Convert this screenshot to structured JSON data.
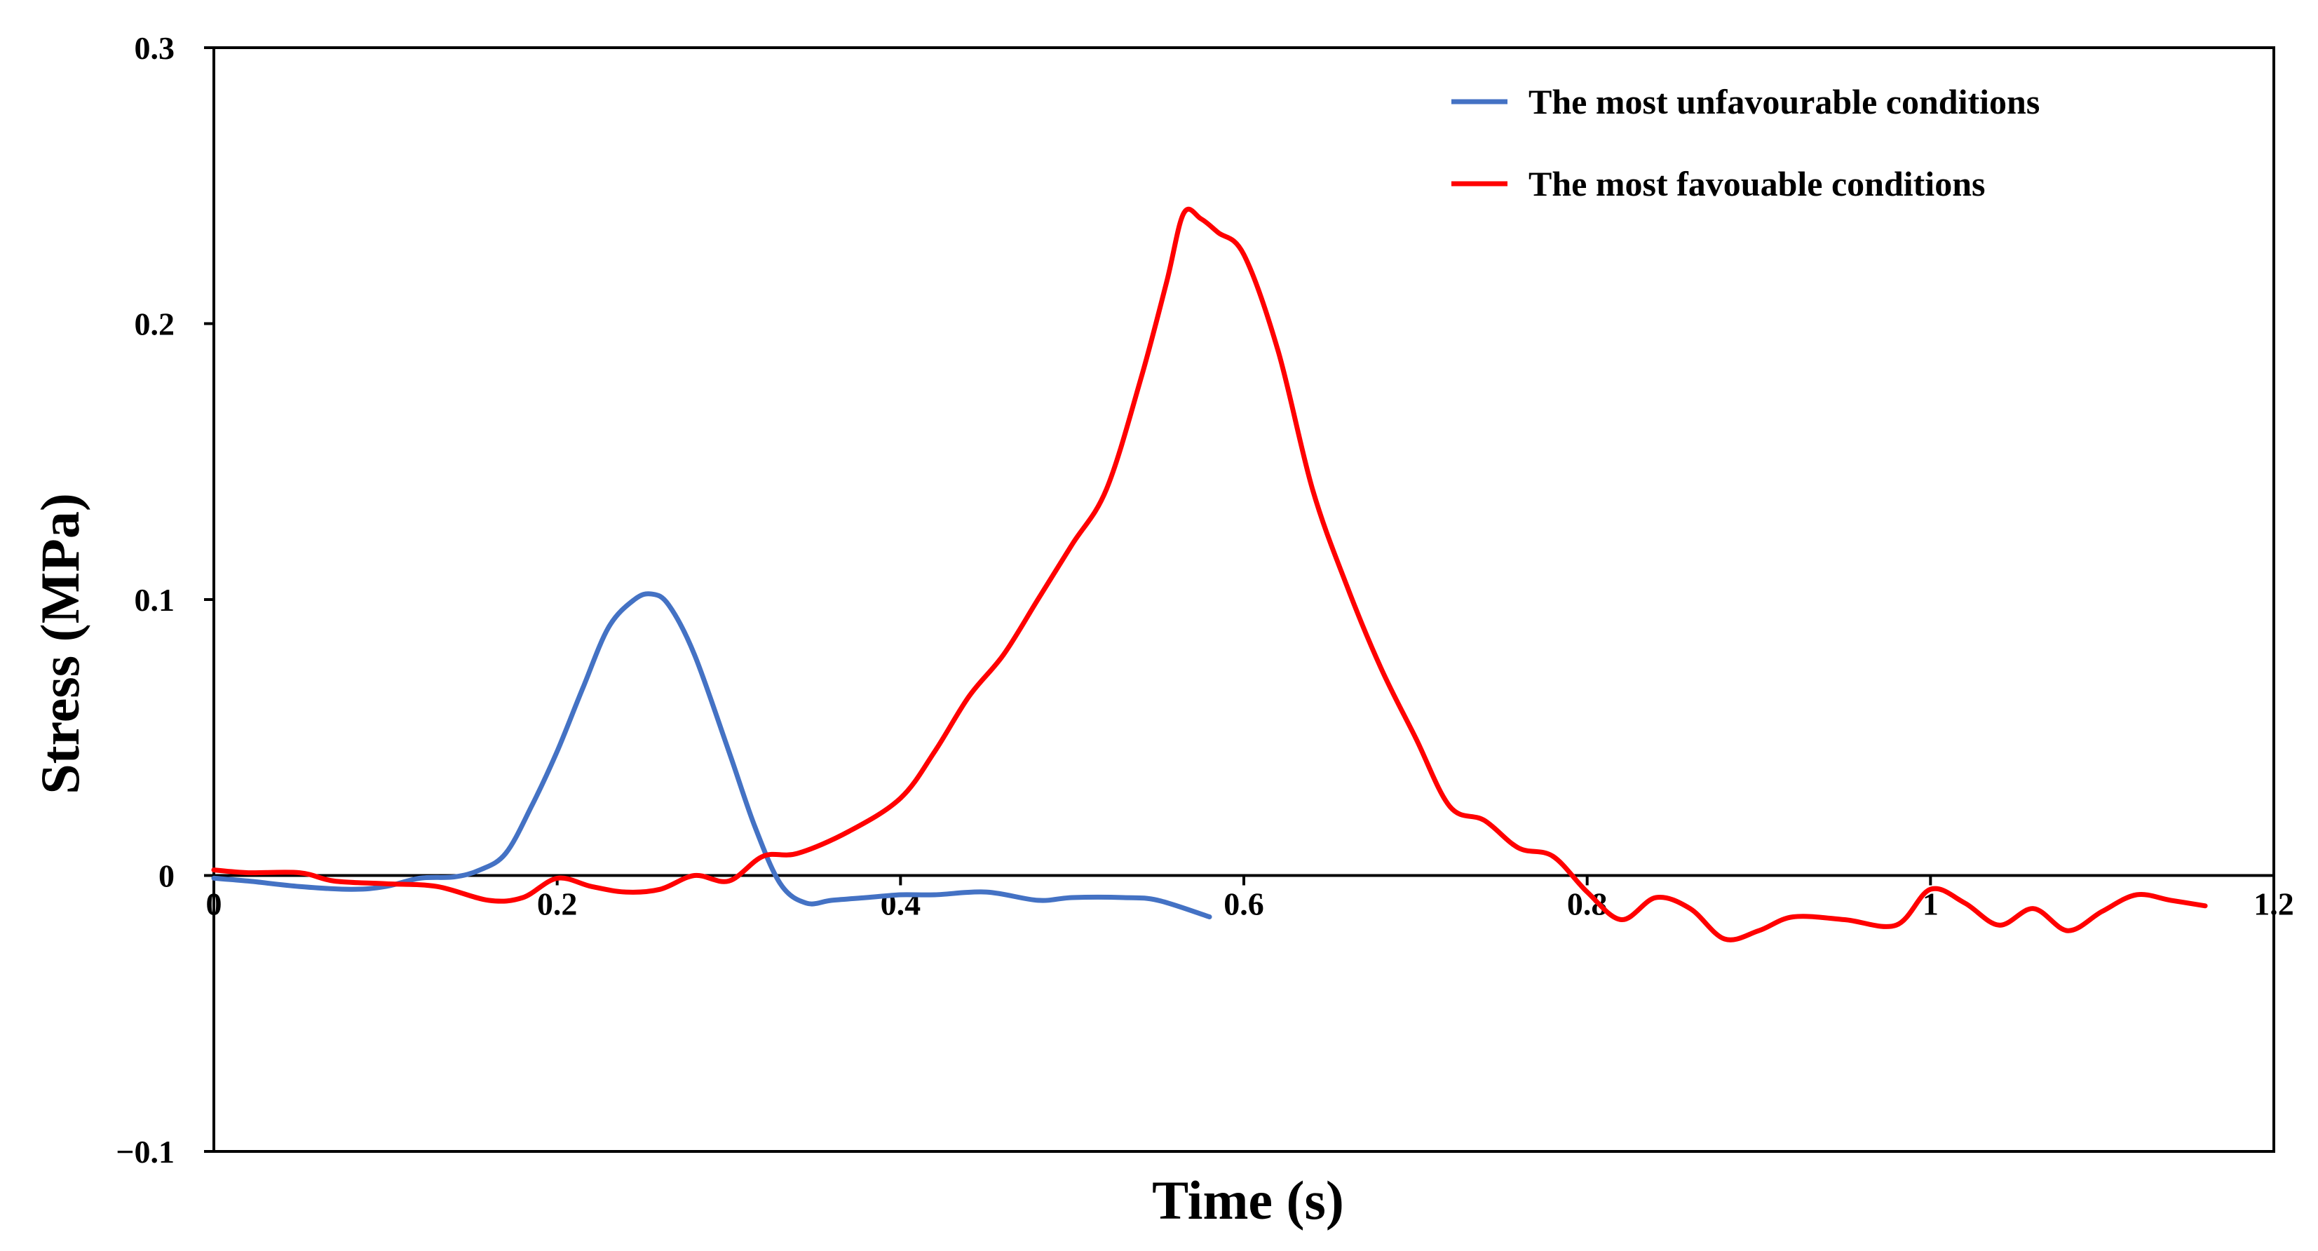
{
  "chart_data": {
    "type": "line",
    "title": "",
    "xlabel": "Time (s)",
    "ylabel": "Stress (MPa)",
    "xlim": [
      0,
      1.2
    ],
    "ylim": [
      -0.1,
      0.3
    ],
    "xticks": [
      {
        "value": 0,
        "label": "0"
      },
      {
        "value": 0.2,
        "label": "0.2"
      },
      {
        "value": 0.4,
        "label": "0.4"
      },
      {
        "value": 0.6,
        "label": "0.6"
      },
      {
        "value": 0.8,
        "label": "0.8"
      },
      {
        "value": 1.0,
        "label": "1"
      },
      {
        "value": 1.2,
        "label": "1.2"
      }
    ],
    "yticks": [
      {
        "value": -0.1,
        "label": "−0.1"
      },
      {
        "value": 0,
        "label": "0"
      },
      {
        "value": 0.1,
        "label": "0.1"
      },
      {
        "value": 0.2,
        "label": "0.2"
      },
      {
        "value": 0.3,
        "label": "0.3"
      }
    ],
    "grid": false,
    "legend_position": "top-right",
    "series": [
      {
        "name": "The most unfavourable conditions",
        "color": "#4472C4",
        "x": [
          0,
          0.02,
          0.05,
          0.08,
          0.1,
          0.12,
          0.14,
          0.155,
          0.17,
          0.185,
          0.2,
          0.215,
          0.23,
          0.245,
          0.255,
          0.265,
          0.28,
          0.3,
          0.315,
          0.33,
          0.345,
          0.36,
          0.38,
          0.4,
          0.42,
          0.45,
          0.48,
          0.5,
          0.53,
          0.55,
          0.58
        ],
        "y": [
          -0.001,
          -0.002,
          -0.004,
          -0.005,
          -0.004,
          -0.001,
          -0.0005,
          0.002,
          0.008,
          0.025,
          0.045,
          0.068,
          0.09,
          0.1,
          0.102,
          0.098,
          0.08,
          0.045,
          0.018,
          -0.003,
          -0.01,
          -0.009,
          -0.008,
          -0.007,
          -0.007,
          -0.006,
          -0.009,
          -0.008,
          -0.008,
          -0.009,
          -0.015
        ]
      },
      {
        "name": "The most favouable conditions",
        "color": "#FF0000",
        "x": [
          0,
          0.02,
          0.05,
          0.07,
          0.1,
          0.13,
          0.16,
          0.18,
          0.2,
          0.22,
          0.24,
          0.26,
          0.28,
          0.3,
          0.32,
          0.34,
          0.37,
          0.4,
          0.42,
          0.44,
          0.46,
          0.48,
          0.5,
          0.52,
          0.54,
          0.555,
          0.565,
          0.575,
          0.585,
          0.6,
          0.62,
          0.64,
          0.66,
          0.68,
          0.7,
          0.72,
          0.74,
          0.76,
          0.78,
          0.8,
          0.82,
          0.84,
          0.86,
          0.88,
          0.9,
          0.92,
          0.95,
          0.98,
          1.0,
          1.02,
          1.04,
          1.06,
          1.08,
          1.1,
          1.12,
          1.14,
          1.16
        ],
        "y": [
          0.002,
          0.001,
          0.001,
          -0.002,
          -0.003,
          -0.004,
          -0.009,
          -0.008,
          -0.001,
          -0.004,
          -0.006,
          -0.005,
          0.0,
          -0.002,
          0.007,
          0.008,
          0.016,
          0.028,
          0.045,
          0.065,
          0.08,
          0.1,
          0.12,
          0.14,
          0.18,
          0.215,
          0.24,
          0.238,
          0.233,
          0.225,
          0.19,
          0.14,
          0.105,
          0.075,
          0.05,
          0.025,
          0.02,
          0.01,
          0.007,
          -0.006,
          -0.016,
          -0.008,
          -0.012,
          -0.023,
          -0.02,
          -0.015,
          -0.016,
          -0.018,
          -0.005,
          -0.01,
          -0.018,
          -0.012,
          -0.02,
          -0.013,
          -0.007,
          -0.009,
          -0.011
        ]
      }
    ]
  }
}
